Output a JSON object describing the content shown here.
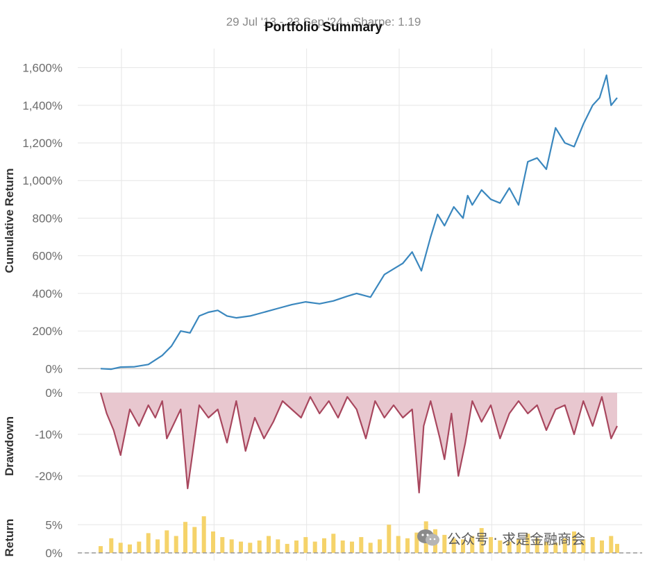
{
  "header": {
    "subtitle": "29 Jul '13 - 23 Sep '24 · Sharpe: 1.19",
    "title": "Portfolio Summary"
  },
  "watermark": {
    "text": "公众号 · 求是金融商会",
    "icon": "wechat-icon"
  },
  "colors": {
    "cumulative": "#3a87be",
    "drawdown_line": "#a8475e",
    "drawdown_fill": "#e8c7cf",
    "returns": "#f5d36a",
    "grid": "#e6e6e6",
    "zero_line": "#999999"
  },
  "chart_data": [
    {
      "type": "line",
      "name": "cumulative-return",
      "ylabel": "Cumulative Return",
      "ylim": [
        -10,
        1650
      ],
      "yticks": [
        0,
        200,
        400,
        600,
        800,
        1000,
        1200,
        1400,
        1600
      ],
      "ytick_labels": [
        "0%",
        "200%",
        "400%",
        "600%",
        "800%",
        "1,000%",
        "1,200%",
        "1,400%",
        "1,600%"
      ],
      "grid": true,
      "x": [
        2013.57,
        2013.8,
        2014.0,
        2014.3,
        2014.6,
        2014.9,
        2015.1,
        2015.3,
        2015.5,
        2015.7,
        2015.9,
        2016.1,
        2016.3,
        2016.5,
        2016.8,
        2017.1,
        2017.4,
        2017.7,
        2018.0,
        2018.3,
        2018.6,
        2018.9,
        2019.1,
        2019.4,
        2019.7,
        2019.9,
        2020.1,
        2020.3,
        2020.5,
        2020.7,
        2020.85,
        2021.0,
        2021.2,
        2021.4,
        2021.5,
        2021.6,
        2021.8,
        2022.0,
        2022.2,
        2022.4,
        2022.6,
        2022.8,
        2023.0,
        2023.2,
        2023.4,
        2023.6,
        2023.8,
        2024.0,
        2024.2,
        2024.35,
        2024.5,
        2024.6,
        2024.73
      ],
      "values": [
        0,
        -3,
        8,
        10,
        22,
        70,
        120,
        200,
        190,
        280,
        300,
        310,
        280,
        270,
        280,
        300,
        320,
        340,
        355,
        345,
        360,
        385,
        400,
        380,
        500,
        530,
        560,
        620,
        520,
        700,
        820,
        760,
        860,
        800,
        920,
        870,
        950,
        900,
        880,
        960,
        870,
        1100,
        1120,
        1060,
        1280,
        1200,
        1180,
        1300,
        1400,
        1440,
        1560,
        1400,
        1440
      ],
      "color": "#3a87be"
    },
    {
      "type": "area",
      "name": "drawdown",
      "ylabel": "Drawdown",
      "ylim": [
        -24,
        0
      ],
      "yticks": [
        0,
        -10,
        -20
      ],
      "ytick_labels": [
        "0%",
        "-10%",
        "-20%"
      ],
      "grid": true,
      "x": [
        2013.57,
        2013.7,
        2013.85,
        2014.0,
        2014.2,
        2014.4,
        2014.6,
        2014.75,
        2014.9,
        2015.0,
        2015.3,
        2015.45,
        2015.55,
        2015.7,
        2015.9,
        2016.1,
        2016.3,
        2016.5,
        2016.7,
        2016.9,
        2017.1,
        2017.3,
        2017.5,
        2017.7,
        2017.9,
        2018.1,
        2018.3,
        2018.5,
        2018.7,
        2018.9,
        2019.1,
        2019.3,
        2019.5,
        2019.7,
        2019.9,
        2020.1,
        2020.3,
        2020.45,
        2020.55,
        2020.7,
        2020.9,
        2021.0,
        2021.15,
        2021.3,
        2021.45,
        2021.6,
        2021.8,
        2022.0,
        2022.2,
        2022.4,
        2022.6,
        2022.8,
        2023.0,
        2023.2,
        2023.4,
        2023.6,
        2023.8,
        2024.0,
        2024.2,
        2024.4,
        2024.6,
        2024.73
      ],
      "values": [
        0,
        -5,
        -9,
        -15,
        -4,
        -8,
        -3,
        -6,
        -2,
        -11,
        -4,
        -23,
        -15,
        -3,
        -6,
        -4,
        -12,
        -2,
        -14,
        -6,
        -11,
        -7,
        -2,
        -4,
        -6,
        -1,
        -5,
        -2,
        -6,
        -1,
        -4,
        -11,
        -2,
        -6,
        -3,
        -6,
        -4,
        -24,
        -8,
        -2,
        -11,
        -16,
        -5,
        -20,
        -12,
        -2,
        -7,
        -3,
        -11,
        -5,
        -2,
        -5,
        -3,
        -9,
        -4,
        -3,
        -10,
        -2,
        -8,
        -1,
        -11,
        -8
      ],
      "color": "#a8475e"
    },
    {
      "type": "bar",
      "name": "returns",
      "ylabel": "Return",
      "ylim": [
        -1,
        7
      ],
      "yticks": [
        5,
        0
      ],
      "ytick_labels": [
        "5%",
        "0%"
      ],
      "grid": true,
      "x": [
        2013.57,
        2013.8,
        2014.0,
        2014.2,
        2014.4,
        2014.6,
        2014.8,
        2015.0,
        2015.2,
        2015.4,
        2015.6,
        2015.8,
        2016.0,
        2016.2,
        2016.4,
        2016.6,
        2016.8,
        2017.0,
        2017.2,
        2017.4,
        2017.6,
        2017.8,
        2018.0,
        2018.2,
        2018.4,
        2018.6,
        2018.8,
        2019.0,
        2019.2,
        2019.4,
        2019.6,
        2019.8,
        2020.0,
        2020.2,
        2020.4,
        2020.6,
        2020.8,
        2021.0,
        2021.2,
        2021.4,
        2021.6,
        2021.8,
        2022.0,
        2022.2,
        2022.4,
        2022.6,
        2022.8,
        2023.0,
        2023.2,
        2023.4,
        2023.6,
        2023.8,
        2024.0,
        2024.2,
        2024.4,
        2024.6,
        2024.73
      ],
      "values": [
        1.2,
        2.6,
        1.8,
        1.5,
        2.0,
        3.5,
        2.4,
        4.0,
        3.0,
        5.5,
        4.6,
        6.5,
        3.8,
        2.8,
        2.4,
        2.0,
        1.8,
        2.2,
        3.0,
        2.4,
        1.6,
        2.2,
        2.8,
        2.0,
        2.6,
        3.4,
        2.2,
        2.0,
        2.8,
        1.8,
        2.4,
        5.0,
        3.0,
        2.6,
        3.6,
        5.6,
        4.2,
        3.2,
        2.6,
        2.4,
        3.0,
        4.4,
        2.8,
        2.2,
        2.0,
        2.4,
        3.4,
        2.6,
        2.0,
        1.8,
        2.6,
        3.8,
        2.4,
        2.8,
        2.2,
        3.0,
        1.6
      ],
      "color": "#f5d36a"
    }
  ]
}
